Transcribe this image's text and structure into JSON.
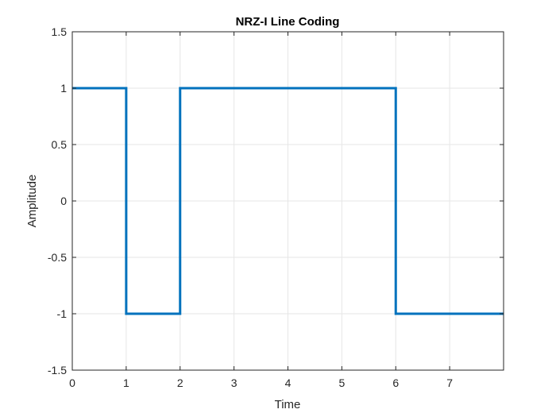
{
  "chart_data": {
    "type": "line",
    "title": "NRZ-I Line Coding",
    "xlabel": "Time",
    "ylabel": "Amplitude",
    "xlim": [
      0,
      8
    ],
    "ylim": [
      -1.5,
      1.5
    ],
    "xticks": [
      0,
      1,
      2,
      3,
      4,
      5,
      6,
      7
    ],
    "yticks": [
      -1.5,
      -1,
      -0.5,
      0,
      0.5,
      1,
      1.5
    ],
    "xtick_labels": [
      "0",
      "1",
      "2",
      "3",
      "4",
      "5",
      "6",
      "7"
    ],
    "ytick_labels": [
      "-1.5",
      "-1",
      "-0.5",
      "0",
      "0.5",
      "1",
      "1.5"
    ],
    "grid": true,
    "series": [
      {
        "x": [
          0,
          1,
          1,
          2,
          2,
          6,
          6,
          8
        ],
        "y": [
          1,
          1,
          -1,
          -1,
          1,
          1,
          -1,
          -1
        ]
      }
    ],
    "colors": {
      "line": "#0072BD",
      "grid": "#e6e6e6",
      "axis": "#262626"
    }
  }
}
